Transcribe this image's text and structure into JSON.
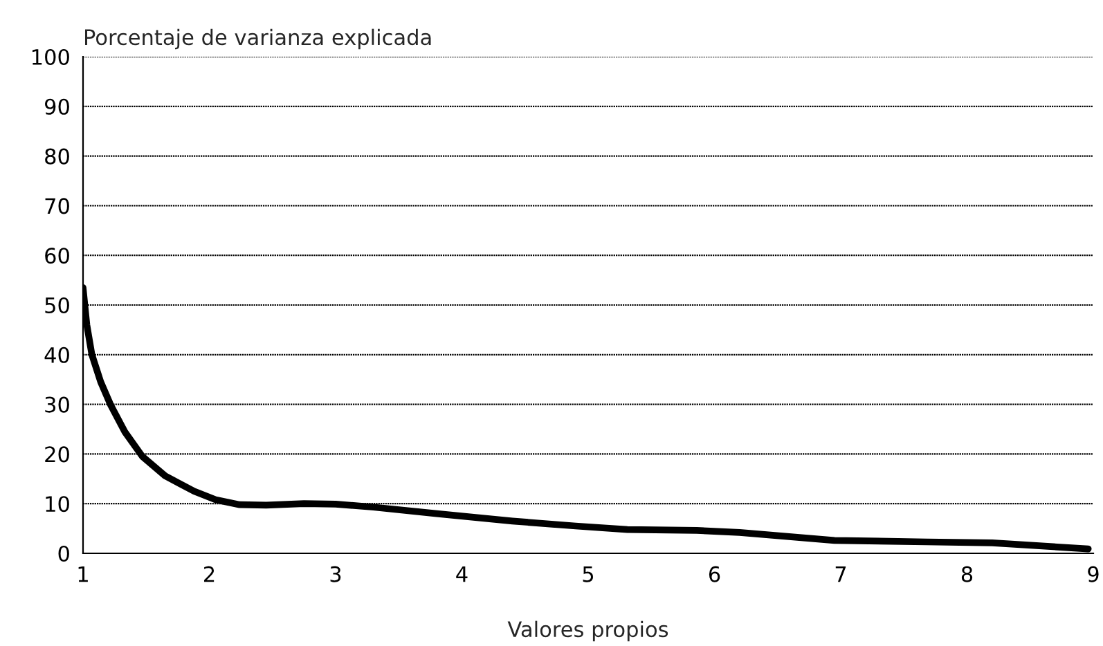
{
  "chart_data": {
    "type": "line",
    "ylabel": "Porcentaje de varianza explicada",
    "xlabel": "Valores propios",
    "x": [
      1,
      1.03,
      1.07,
      1.14,
      1.22,
      1.33,
      1.47,
      1.65,
      1.88,
      2.05,
      2.24,
      2.45,
      2.75,
      3.0,
      3.3,
      3.8,
      4.4,
      4.9,
      5.31,
      5.86,
      6.2,
      6.95,
      7.68,
      8.2,
      8.96
    ],
    "series": [
      {
        "color": "#000000",
        "values": [
          53.5,
          46,
          40,
          34.5,
          29.8,
          24.5,
          19.5,
          15.6,
          12.5,
          10.8,
          9.8,
          9.7,
          10,
          9.9,
          9.3,
          8,
          6.5,
          5.5,
          4.8,
          4.6,
          4.2,
          2.6,
          2.3,
          2.1,
          0.9
        ]
      }
    ],
    "xlim": [
      1,
      9
    ],
    "xticks": [
      1,
      2,
      3,
      4,
      5,
      6,
      7,
      8,
      9
    ],
    "ylim": [
      0,
      100
    ],
    "yticks": [
      0,
      10,
      20,
      30,
      40,
      50,
      60,
      70,
      80,
      90,
      100
    ],
    "grid": "y",
    "marker": "none",
    "line_style": "solid"
  }
}
